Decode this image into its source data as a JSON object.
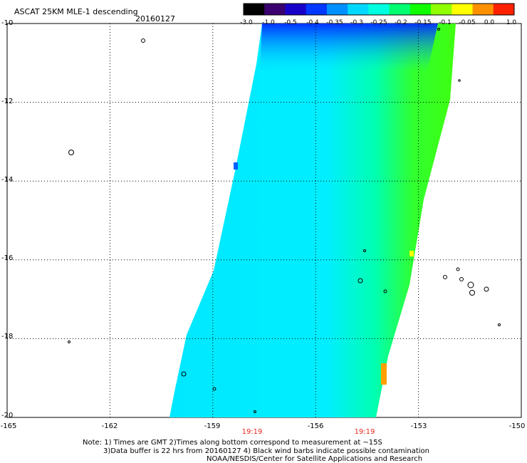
{
  "header": {
    "title": "ASCAT 25KM MLE-1 descending",
    "date": "20160127"
  },
  "colorbar": {
    "labels": [
      "-3.0",
      "-1.0",
      "-0.5",
      "-0.4",
      "-0.35",
      "-0.3",
      "-0.25",
      "-0.2",
      "-0.15",
      "-0.1",
      "-0.05",
      "0.0",
      "1.0"
    ],
    "colors": [
      "#000000",
      "#3a0070",
      "#1800c8",
      "#0038ff",
      "#0090ff",
      "#00d8ff",
      "#00ffe0",
      "#00ff70",
      "#10ff00",
      "#90ff00",
      "#ffff00",
      "#ff9000",
      "#ff2000"
    ]
  },
  "axes": {
    "lat_labels": [
      "-10",
      "-12",
      "-14",
      "-16",
      "-18",
      "-20"
    ],
    "lon_labels": [
      "-165",
      "-162",
      "-159",
      "-156",
      "-153",
      "-150"
    ],
    "lon_range": [
      -165,
      -150
    ],
    "lat_range": [
      -20,
      -10
    ]
  },
  "times": [
    "19:19",
    "19:19"
  ],
  "notes": {
    "line1": "Note: 1) Times are GMT 2)Times along bottom correspond to measurement at ~15S",
    "line2": "3)Data buffer is 22 hrs from 20160127 4) Black wind barbs indicate possible contamination",
    "line3": "NOAA/NESDIS/Center for Satellite Applications and Research"
  },
  "swath": {
    "base_color": "#00f0ff",
    "east_color": "#10ff00",
    "north_color": "#0030ff"
  }
}
